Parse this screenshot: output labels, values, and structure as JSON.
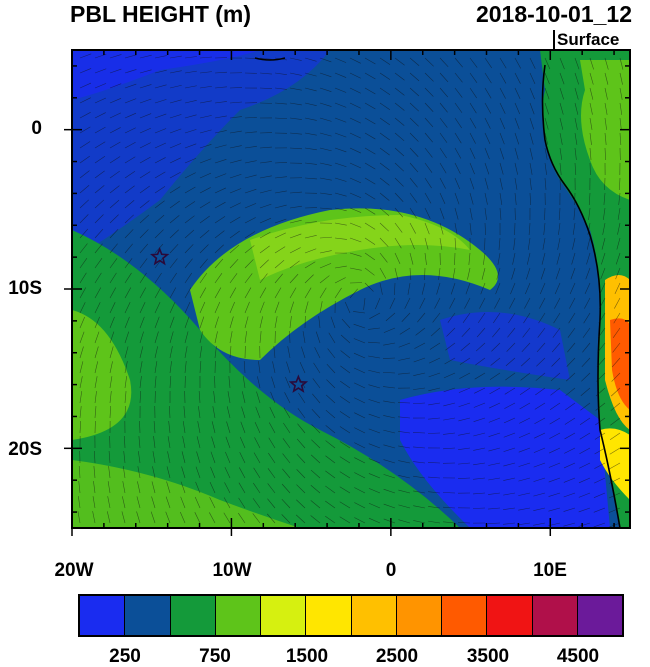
{
  "header": {
    "title": "PBL HEIGHT (m)",
    "datetime": "2018-10-01_12",
    "level": "Surface"
  },
  "map": {
    "region": "Southeast Atlantic / southwest Africa coast",
    "lat_labels": [
      "0",
      "10S",
      "20S"
    ],
    "lon_labels": [
      "20W",
      "10W",
      "0",
      "10E"
    ],
    "lon_range": [
      -20,
      15
    ],
    "lat_range": [
      -25,
      5
    ],
    "markers": [
      {
        "icon": "star-icon",
        "lon": -14.5,
        "lat": -8.0
      },
      {
        "icon": "star-icon",
        "lon": -5.8,
        "lat": -16.0
      }
    ],
    "overlay": "wind-barbs"
  },
  "colorbar": {
    "colors": [
      "#1a2cf0",
      "#0b4f98",
      "#149a3a",
      "#5ec41a",
      "#d6f010",
      "#ffe600",
      "#ffc000",
      "#ff9400",
      "#ff5a00",
      "#f01414",
      "#b0104a",
      "#6b1a9a"
    ],
    "labels": [
      "250",
      "750",
      "1500",
      "2500",
      "3500",
      "4500"
    ]
  }
}
